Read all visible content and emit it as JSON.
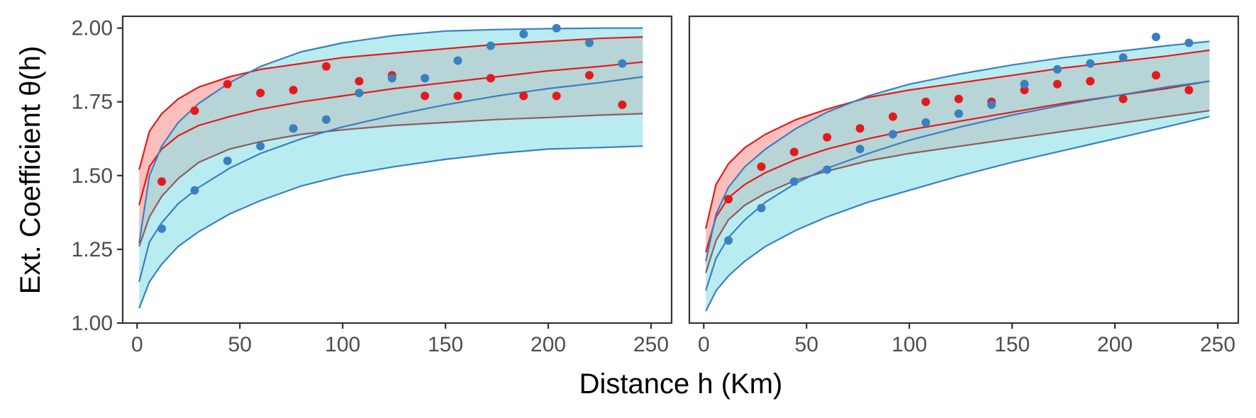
{
  "chart_data": {
    "type": "line",
    "xlabel": "Distance h (Km)",
    "ylabel": "Ext. Coefficient θ(h)",
    "xlim": [
      -7,
      260
    ],
    "ylim": [
      1.0,
      2.04
    ],
    "xticks": [
      0,
      50,
      100,
      150,
      200,
      250
    ],
    "xtick_labels": [
      "0",
      "50",
      "100",
      "150",
      "200",
      "250"
    ],
    "yticks": [
      1.0,
      1.25,
      1.5,
      1.75,
      2.0
    ],
    "ytick_labels": [
      "1.00",
      "1.25",
      "1.50",
      "1.75",
      "2.00"
    ],
    "grid": false,
    "colors": {
      "red_line": "#e31a1c",
      "red_fill": "#f8b4b0",
      "blue_line": "#3a7fc1",
      "blue_fill": "#8ee0e6",
      "overlap_line": "#8c5d5d"
    },
    "panels": [
      {
        "name": "left",
        "series": [
          {
            "name": "red model",
            "color": "#e31a1c",
            "x": [
              1,
              6,
              12,
              20,
              30,
              45,
              60,
              80,
              100,
              125,
              150,
              175,
              200,
              225,
              246
            ],
            "mean": [
              1.4,
              1.53,
              1.59,
              1.635,
              1.67,
              1.7,
              1.725,
              1.75,
              1.77,
              1.795,
              1.815,
              1.835,
              1.855,
              1.87,
              1.885
            ],
            "lower": [
              1.26,
              1.36,
              1.43,
              1.49,
              1.545,
              1.59,
              1.615,
              1.64,
              1.655,
              1.67,
              1.68,
              1.69,
              1.697,
              1.705,
              1.71
            ],
            "upper": [
              1.52,
              1.65,
              1.71,
              1.76,
              1.8,
              1.835,
              1.86,
              1.88,
              1.9,
              1.915,
              1.93,
              1.945,
              1.955,
              1.965,
              1.97
            ],
            "points_x": [
              12,
              28,
              44,
              60,
              76,
              92,
              108,
              124,
              140,
              156,
              172,
              188,
              204,
              220,
              236
            ],
            "points_y": [
              1.48,
              1.72,
              1.81,
              1.78,
              1.79,
              1.87,
              1.82,
              1.84,
              1.77,
              1.77,
              1.83,
              1.77,
              1.77,
              1.84,
              1.74
            ]
          },
          {
            "name": "blue model",
            "color": "#3a7fc1",
            "x": [
              1,
              6,
              12,
              20,
              30,
              45,
              60,
              80,
              100,
              125,
              150,
              175,
              200,
              225,
              246
            ],
            "mean": [
              1.14,
              1.275,
              1.34,
              1.405,
              1.46,
              1.525,
              1.575,
              1.625,
              1.665,
              1.705,
              1.74,
              1.77,
              1.795,
              1.815,
              1.835
            ],
            "lower": [
              1.05,
              1.14,
              1.2,
              1.26,
              1.31,
              1.37,
              1.415,
              1.465,
              1.5,
              1.53,
              1.555,
              1.575,
              1.59,
              1.595,
              1.6
            ],
            "upper": [
              1.27,
              1.5,
              1.6,
              1.68,
              1.745,
              1.815,
              1.87,
              1.92,
              1.95,
              1.975,
              1.99,
              1.995,
              1.998,
              2.0,
              2.0
            ],
            "points_x": [
              12,
              28,
              44,
              60,
              76,
              92,
              108,
              124,
              140,
              156,
              172,
              188,
              204,
              220,
              236
            ],
            "points_y": [
              1.32,
              1.45,
              1.55,
              1.6,
              1.66,
              1.69,
              1.78,
              1.83,
              1.83,
              1.89,
              1.94,
              1.98,
              2.0,
              1.95,
              1.88
            ]
          }
        ]
      },
      {
        "name": "right",
        "series": [
          {
            "name": "red model",
            "color": "#e31a1c",
            "x": [
              1,
              6,
              12,
              20,
              30,
              45,
              60,
              80,
              100,
              125,
              150,
              175,
              200,
              225,
              246
            ],
            "mean": [
              1.24,
              1.36,
              1.425,
              1.47,
              1.51,
              1.555,
              1.59,
              1.625,
              1.655,
              1.685,
              1.715,
              1.745,
              1.77,
              1.795,
              1.82
            ],
            "lower": [
              1.17,
              1.28,
              1.35,
              1.4,
              1.44,
              1.485,
              1.515,
              1.55,
              1.575,
              1.6,
              1.625,
              1.65,
              1.675,
              1.7,
              1.72
            ],
            "upper": [
              1.32,
              1.47,
              1.54,
              1.595,
              1.64,
              1.69,
              1.725,
              1.765,
              1.79,
              1.815,
              1.84,
              1.865,
              1.885,
              1.905,
              1.925
            ],
            "points_x": [
              12,
              28,
              44,
              60,
              76,
              92,
              108,
              124,
              140,
              156,
              172,
              188,
              204,
              220,
              236
            ],
            "points_y": [
              1.42,
              1.53,
              1.58,
              1.63,
              1.66,
              1.7,
              1.75,
              1.76,
              1.75,
              1.79,
              1.81,
              1.82,
              1.76,
              1.84,
              1.79
            ]
          },
          {
            "name": "blue model",
            "color": "#3a7fc1",
            "x": [
              1,
              6,
              12,
              20,
              30,
              45,
              60,
              80,
              100,
              125,
              150,
              175,
              200,
              225,
              246
            ],
            "mean": [
              1.11,
              1.22,
              1.29,
              1.35,
              1.41,
              1.475,
              1.525,
              1.575,
              1.62,
              1.665,
              1.705,
              1.74,
              1.77,
              1.8,
              1.82
            ],
            "lower": [
              1.04,
              1.11,
              1.16,
              1.21,
              1.26,
              1.315,
              1.36,
              1.41,
              1.45,
              1.5,
              1.545,
              1.585,
              1.625,
              1.665,
              1.7
            ],
            "upper": [
              1.21,
              1.37,
              1.46,
              1.53,
              1.59,
              1.66,
              1.715,
              1.77,
              1.81,
              1.845,
              1.875,
              1.9,
              1.92,
              1.94,
              1.955
            ],
            "points_x": [
              12,
              28,
              44,
              60,
              76,
              92,
              108,
              124,
              140,
              156,
              172,
              188,
              204,
              220,
              236
            ],
            "points_y": [
              1.28,
              1.39,
              1.48,
              1.52,
              1.59,
              1.64,
              1.68,
              1.71,
              1.74,
              1.81,
              1.86,
              1.88,
              1.9,
              1.97,
              1.95
            ]
          }
        ]
      }
    ]
  }
}
